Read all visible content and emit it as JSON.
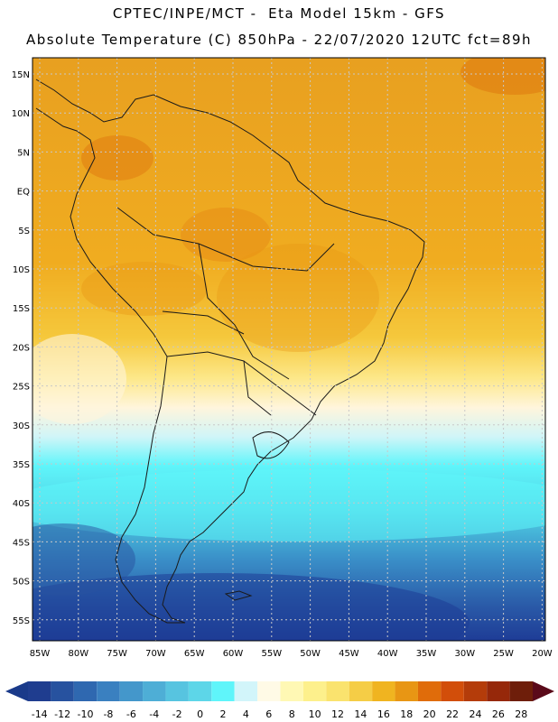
{
  "header": {
    "line1": "CPTEC/INPE/MCT -  Eta Model 15km - GFS",
    "line2": "Absolute Temperature (C) 850hPa - 22/07/2020 12UTC fct=89h"
  },
  "map": {
    "lat_labels": [
      "15N",
      "10N",
      "5N",
      "EQ",
      "5S",
      "10S",
      "15S",
      "20S",
      "25S",
      "30S",
      "35S",
      "40S",
      "45S",
      "50S",
      "55S"
    ],
    "lon_labels": [
      "85W",
      "80W",
      "75W",
      "70W",
      "65W",
      "60W",
      "55W",
      "50W",
      "45W",
      "40W",
      "35W",
      "30W",
      "25W",
      "20W"
    ],
    "colors": {
      "ocean_deep": "#1e3c96",
      "cold": "#3c8fc8",
      "cyan": "#5ff5fa",
      "cream": "#fff5dc",
      "yellow": "#fde88a",
      "orange": "#f0b020",
      "warm": "#e07c10"
    }
  },
  "colorbar": {
    "labels": [
      "-14",
      "-12",
      "-10",
      "-8",
      "-6",
      "-4",
      "-2",
      "0",
      "2",
      "4",
      "6",
      "8",
      "10",
      "12",
      "14",
      "16",
      "18",
      "20",
      "22",
      "24",
      "26",
      "28"
    ],
    "colors": [
      "#1f3d8f",
      "#27529f",
      "#2f68b0",
      "#3a80c0",
      "#4497cb",
      "#4eaed6",
      "#57c4e0",
      "#5dd6e8",
      "#5ff5fa",
      "#d2f5fa",
      "#fffae6",
      "#fff8b4",
      "#fdf08c",
      "#fae36e",
      "#f5cd46",
      "#f0b420",
      "#e89614",
      "#e06c0a",
      "#d24e0a",
      "#b43c0a",
      "#96280a",
      "#6e1e0a"
    ]
  }
}
